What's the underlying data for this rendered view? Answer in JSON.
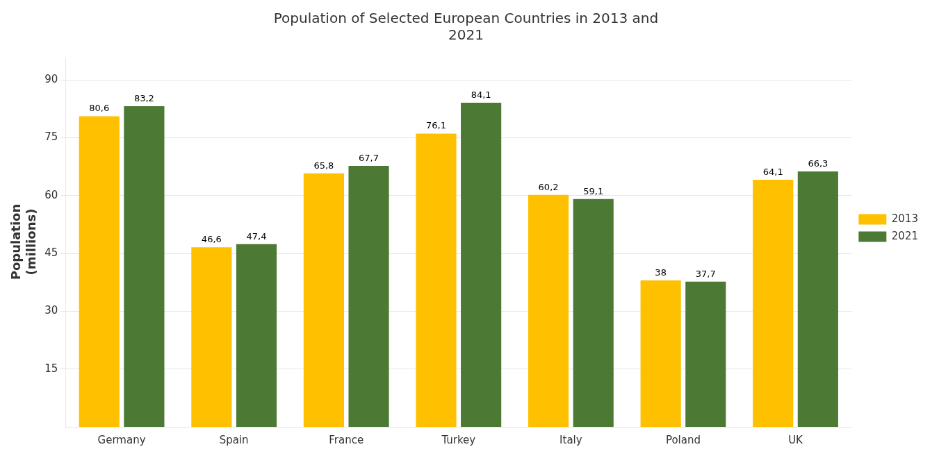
{
  "chart_data": {
    "type": "bar",
    "title": "Population of Selected European Countries in 2013 and\n2021",
    "ylabel": "Population\n(millions)",
    "categories": [
      "Germany",
      "Spain",
      "France",
      "Turkey",
      "Italy",
      "Poland",
      "UK"
    ],
    "series": [
      {
        "name": "2013",
        "color": "#FFC000",
        "values": [
          80.6,
          46.6,
          65.8,
          76.1,
          60.2,
          38.0,
          64.1
        ],
        "value_labels": [
          "80,6",
          "46,6",
          "65,8",
          "76,1",
          "60,2",
          "38",
          "64,1"
        ]
      },
      {
        "name": "2021",
        "color": "#4C7A34",
        "values": [
          83.2,
          47.4,
          67.7,
          84.1,
          59.1,
          37.7,
          66.3
        ],
        "value_labels": [
          "83,2",
          "47,4",
          "67,7",
          "84,1",
          "59,1",
          "37,7",
          "66,3"
        ]
      }
    ],
    "ylim": [
      0,
      96
    ],
    "yticks": [
      15,
      30,
      45,
      60,
      75,
      90
    ],
    "grid": true,
    "legend": "right",
    "data_labels": true
  }
}
